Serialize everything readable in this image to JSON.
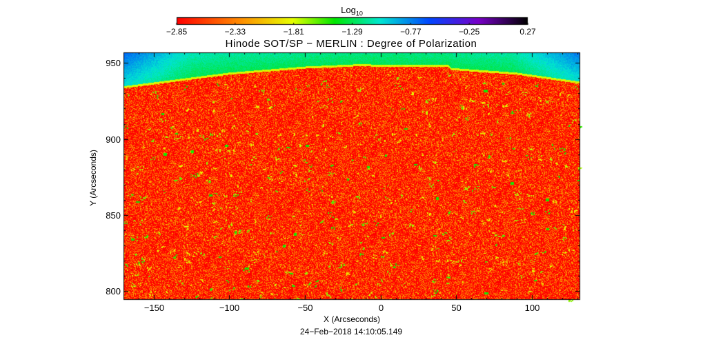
{
  "colorbar": {
    "title": "Log",
    "title_sub": "10",
    "ticks": [
      "-2.85",
      "-2.33",
      "-1.81",
      "-1.29",
      "-0.77",
      "-0.25",
      "0.27"
    ],
    "range": [
      -2.85,
      0.27
    ],
    "colormap": "rainbow (red to black)"
  },
  "chart_data": {
    "type": "heatmap",
    "title": "Hinode SOT/SP − MERLIN : Degree of Polarization",
    "xlabel": "X (Arcseconds)",
    "ylabel": "Y (Arcseconds)",
    "xlim": [
      -170,
      132
    ],
    "ylim": [
      794,
      957
    ],
    "x_ticks": [
      -150,
      -100,
      -50,
      0,
      50,
      100
    ],
    "y_ticks": [
      800,
      850,
      900,
      950
    ],
    "x_tick_labels": [
      "−150",
      "−100",
      "−50",
      "0",
      "50",
      "100"
    ],
    "y_tick_labels": [
      "800",
      "850",
      "900",
      "950"
    ],
    "limb_y": [
      {
        "x": -170,
        "y": 934
      },
      {
        "x": -100,
        "y": 943
      },
      {
        "x": -50,
        "y": 947
      },
      {
        "x": -15,
        "y": 948.5
      },
      {
        "x": 20,
        "y": 948
      },
      {
        "x": 45,
        "y": 948
      },
      {
        "x": 47,
        "y": 946
      },
      {
        "x": 90,
        "y": 943
      },
      {
        "x": 132,
        "y": 937
      }
    ],
    "disk_log_value": -2.85,
    "offdisk_log_value_range": [
      -1.6,
      -0.5
    ],
    "colors": {
      "disk": "#ff1a00",
      "limb": "#e6ff00",
      "offdisk_near": "#00e57a",
      "offdisk_far": "#0040ff"
    }
  },
  "timestamp": "24−Feb−2018 14:10:05.149"
}
